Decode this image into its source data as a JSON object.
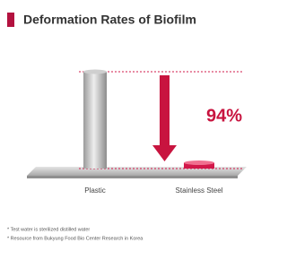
{
  "chart_data": {
    "type": "bar",
    "title": "Deformation Rates of Biofilm",
    "categories": [
      "Plastic",
      "Stainless Steel"
    ],
    "values": [
      100,
      6
    ],
    "colors": [
      "#b9b9b9",
      "#d2184a"
    ],
    "annotation": "94%",
    "footnotes": [
      "* Test water is sterilized distilled water",
      "* Resource from Bukyung Food Bio Center Research in Korea"
    ]
  }
}
